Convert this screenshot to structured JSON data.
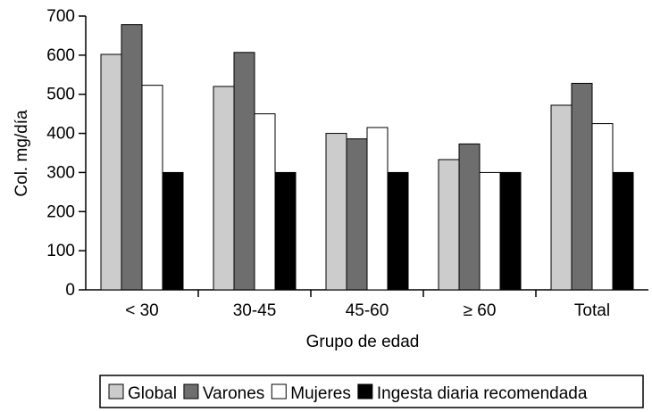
{
  "chart_data": {
    "type": "bar",
    "ylabel": "Col. mg/día",
    "xlabel": "Grupo de edad",
    "ylim": [
      0,
      700
    ],
    "yticks": [
      0,
      100,
      200,
      300,
      400,
      500,
      600,
      700
    ],
    "categories": [
      "< 30",
      "30-45",
      "45-60",
      "≥ 60",
      "Total"
    ],
    "series": [
      {
        "name": "Global",
        "color": "#cccccc",
        "values": [
          602,
          520,
          400,
          333,
          472
        ]
      },
      {
        "name": "Varones",
        "color": "#6e6e6e",
        "values": [
          678,
          607,
          386,
          373,
          528
        ]
      },
      {
        "name": "Mujeres",
        "color": "#ffffff",
        "values": [
          523,
          450,
          415,
          300,
          425
        ]
      },
      {
        "name": "Ingesta diaria recomendada",
        "color": "#000000",
        "values": [
          300,
          300,
          300,
          300,
          300
        ]
      }
    ],
    "grid": false,
    "legend_position": "bottom"
  }
}
